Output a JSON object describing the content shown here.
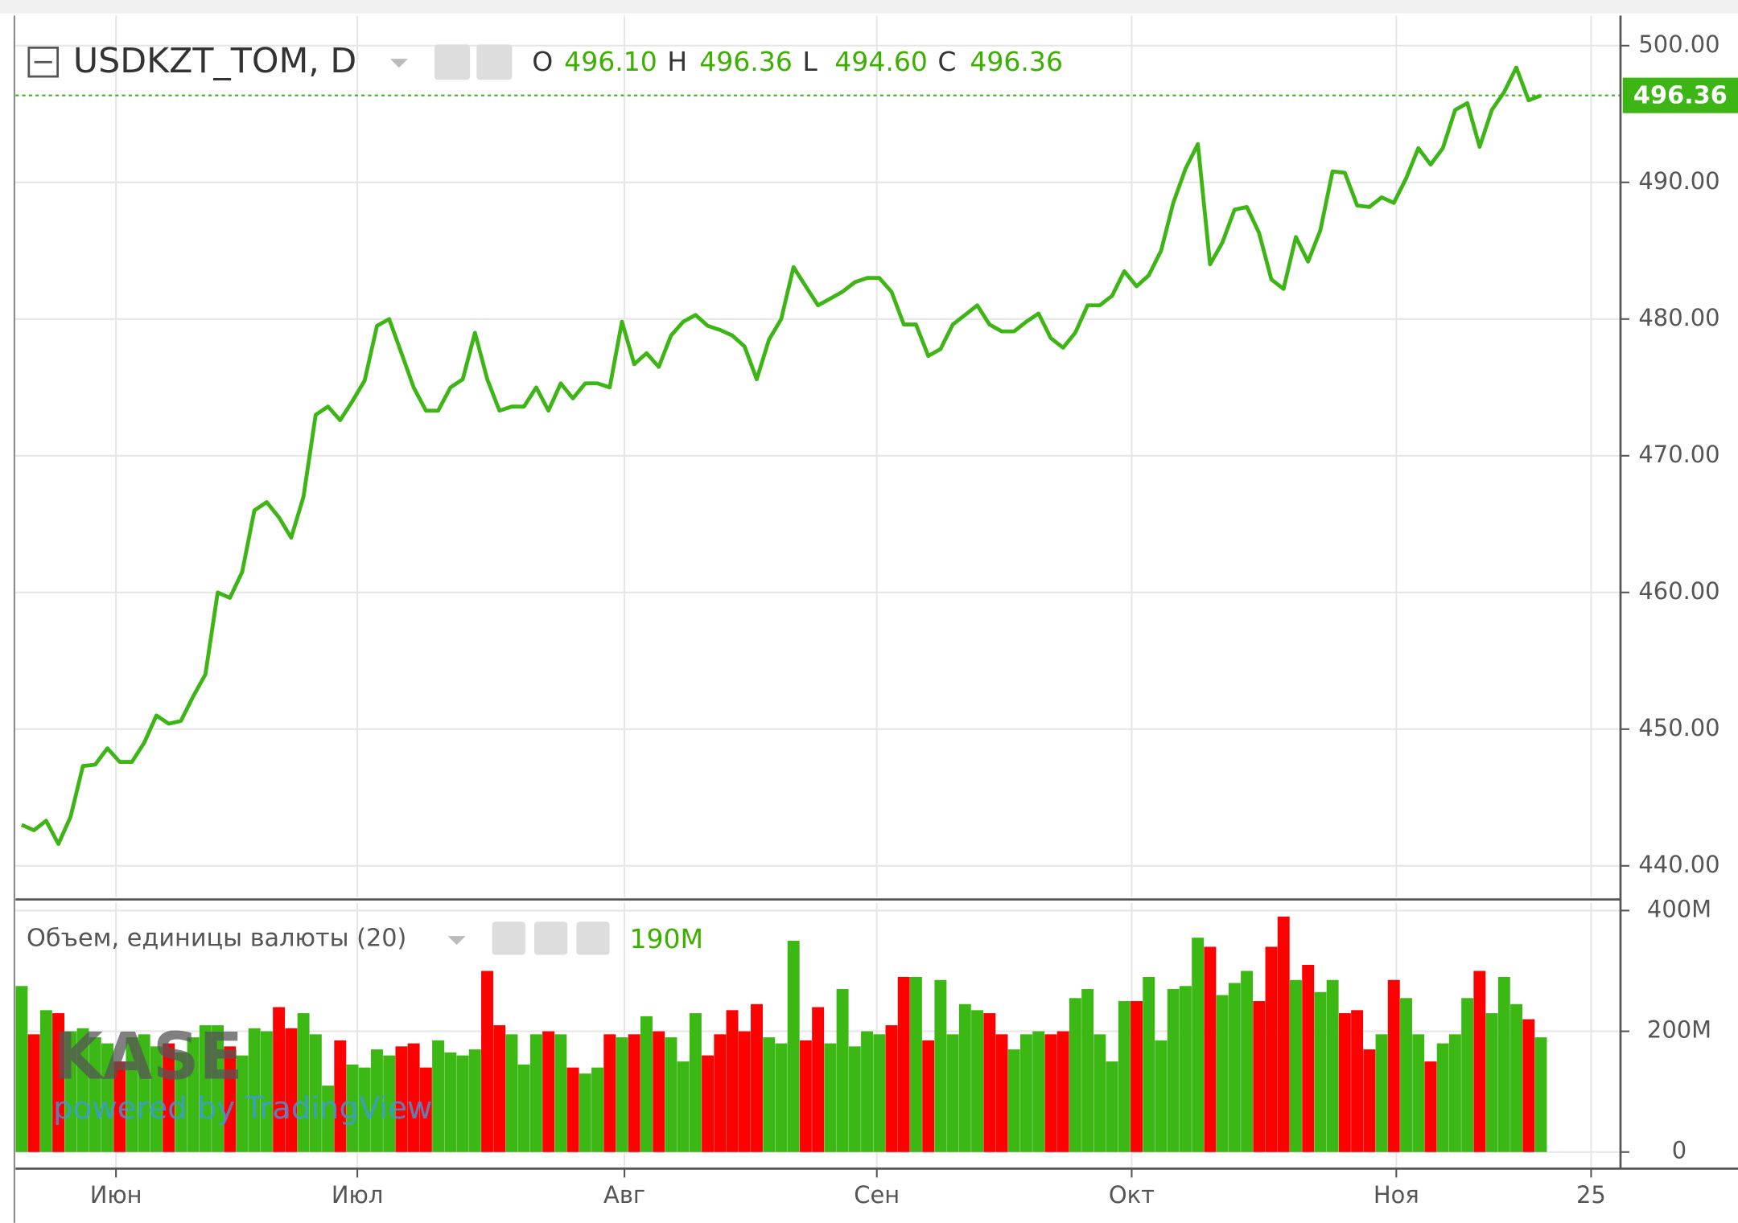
{
  "header": {
    "symbol": "USDKZT_TOM, D",
    "ohlc": [
      {
        "key": "O",
        "value": "496.10"
      },
      {
        "key": "H",
        "value": "496.36"
      },
      {
        "key": "L",
        "value": "494.60"
      },
      {
        "key": "C",
        "value": "496.36"
      }
    ],
    "volume_title": "Объем, единицы валюты (20)",
    "volume_value": "190M",
    "watermark": "KASE",
    "watermark_sub": "powered by TradingView"
  },
  "chart_data": [
    {
      "type": "line",
      "color": "#3cb515",
      "grid": true,
      "values": [
        443,
        442.6,
        443.3,
        441.6,
        443.6,
        447.3,
        447.4,
        448.6,
        447.6,
        447.6,
        449,
        451,
        450.4,
        450.6,
        452.4,
        454,
        460,
        459.6,
        461.5,
        466,
        466.6,
        465.5,
        464,
        467,
        473,
        473.6,
        472.6,
        474,
        475.5,
        479.5,
        480,
        477.5,
        475,
        473.3,
        473.3,
        475,
        475.6,
        479,
        475.6,
        473.3,
        473.6,
        473.6,
        475,
        473.3,
        475.3,
        474.2,
        475.3,
        475.3,
        475,
        479.8,
        476.7,
        477.5,
        476.5,
        478.8,
        479.8,
        480.3,
        479.5,
        479.2,
        478.8,
        478,
        475.6,
        478.5,
        480,
        483.8,
        482.4,
        481,
        481.5,
        482,
        482.7,
        483,
        483,
        482,
        479.6,
        479.6,
        477.3,
        477.8,
        479.6,
        480.3,
        481,
        479.6,
        479.1,
        479.1,
        479.8,
        480.4,
        478.6,
        477.9,
        479,
        481,
        481,
        481.7,
        483.5,
        482.4,
        483.2,
        485,
        488.5,
        491,
        492.8,
        484,
        485.6,
        488,
        488.2,
        486.3,
        482.9,
        482.2,
        486,
        484.2,
        486.5,
        490.8,
        490.7,
        488.3,
        488.2,
        488.9,
        488.5,
        490.3,
        492.5,
        491.3,
        492.5,
        495.3,
        495.8,
        492.6,
        495.3,
        496.6,
        498.4,
        496,
        496.36
      ],
      "last_value": {
        "value": 496.36,
        "label": "496.36"
      },
      "xlim": [
        -0.5,
        130.5
      ],
      "ylim": [
        437.7,
        502.2
      ],
      "yticks": [
        {
          "value": 440,
          "label": "440.00"
        },
        {
          "value": 450,
          "label": "450.00"
        },
        {
          "value": 460,
          "label": "460.00"
        },
        {
          "value": 470,
          "label": "470.00"
        },
        {
          "value": 480,
          "label": "480.00"
        },
        {
          "value": 490,
          "label": "490.00"
        },
        {
          "value": 500,
          "label": "500.00"
        }
      ]
    },
    {
      "type": "bar",
      "up_color": "#3cb815",
      "down_color": "#ff0000",
      "grid": true,
      "values": [
        275,
        195,
        235,
        230,
        200,
        205,
        190,
        180,
        150,
        190,
        195,
        175,
        180,
        165,
        190,
        210,
        210,
        175,
        160,
        205,
        200,
        240,
        205,
        230,
        195,
        110,
        185,
        145,
        140,
        170,
        160,
        175,
        180,
        140,
        185,
        165,
        160,
        170,
        300,
        210,
        195,
        145,
        195,
        200,
        195,
        140,
        130,
        140,
        195,
        190,
        195,
        225,
        200,
        190,
        150,
        230,
        160,
        195,
        235,
        200,
        245,
        190,
        180,
        350,
        185,
        240,
        180,
        270,
        175,
        200,
        195,
        210,
        290,
        290,
        185,
        285,
        195,
        245,
        235,
        230,
        195,
        170,
        195,
        200,
        195,
        200,
        255,
        270,
        195,
        150,
        250,
        250,
        290,
        185,
        270,
        275,
        355,
        340,
        260,
        280,
        300,
        250,
        340,
        390,
        285,
        310,
        265,
        285,
        230,
        235,
        170,
        195,
        285,
        255,
        195,
        150,
        180,
        195,
        255,
        300,
        230,
        290,
        245,
        220,
        190
      ],
      "xlim": [
        -0.5,
        130.5
      ],
      "ylim": [
        -27.5,
        412.8
      ],
      "yticks": [
        0,
        {
          "value": 200,
          "label": "200M"
        },
        {
          "value": 400,
          "label": "400M"
        }
      ],
      "xticks": [
        {
          "value": 7.7,
          "label": "Июн"
        },
        {
          "value": 27.4,
          "label": "Июл"
        },
        {
          "value": 49.2,
          "label": "Авг"
        },
        {
          "value": 69.8,
          "label": "Сен"
        },
        {
          "value": 90.6,
          "label": "Окт"
        },
        {
          "value": 112.2,
          "label": "Ноя"
        },
        {
          "value": 128.1,
          "label": "25"
        }
      ]
    }
  ]
}
